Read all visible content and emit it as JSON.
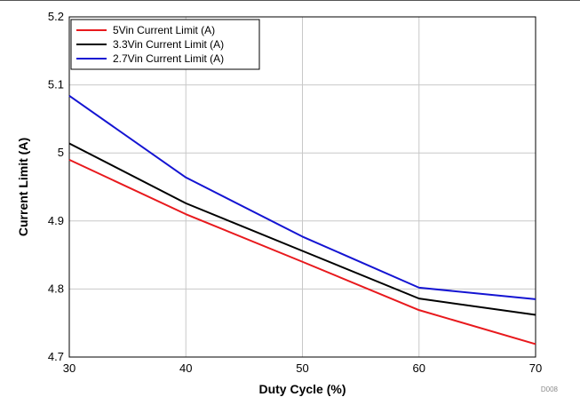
{
  "chart_data": {
    "type": "line",
    "xlabel": "Duty Cycle (%)",
    "ylabel": "Current Limit (A)",
    "xlim": [
      30,
      70
    ],
    "ylim": [
      4.7,
      5.2
    ],
    "xticks": [
      30,
      40,
      50,
      60,
      70
    ],
    "xtick_labels": [
      "30",
      "40",
      "50",
      "60",
      "70"
    ],
    "yticks": [
      4.7,
      4.8,
      4.9,
      5.0,
      5.1,
      5.2
    ],
    "ytick_labels": [
      "4.7",
      "4.8",
      "4.9",
      "5",
      "5.1",
      "5.2"
    ],
    "grid": true,
    "legend_position": "top-left",
    "series": [
      {
        "name": "5Vin Current Limit (A)",
        "color": "#e8191d",
        "x": [
          30,
          40,
          50,
          60,
          70
        ],
        "y": [
          4.99,
          4.91,
          4.84,
          4.769,
          4.719
        ]
      },
      {
        "name": "3.3Vin Current Limit (A)",
        "color": "#000000",
        "x": [
          30,
          40,
          50,
          60,
          70
        ],
        "y": [
          5.014,
          4.926,
          4.856,
          4.786,
          4.762
        ]
      },
      {
        "name": "2.7Vin Current Limit (A)",
        "color": "#1414d2",
        "x": [
          30,
          40,
          50,
          60,
          70
        ],
        "y": [
          5.084,
          4.964,
          4.877,
          4.802,
          4.785
        ]
      }
    ]
  },
  "figure_id": "D008"
}
